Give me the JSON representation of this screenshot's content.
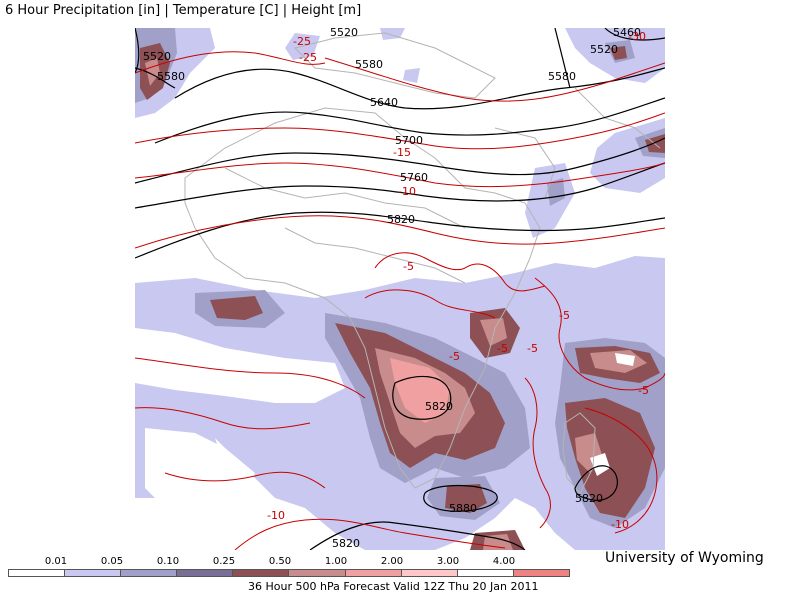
{
  "title": "6 Hour Precipitation [in] | Temperature [C] | Height [m]",
  "credit": "University of Wyoming",
  "footer": "36 Hour 500 hPa Forecast Valid 12Z Thu 20 Jan 2011",
  "colors": {
    "precip_levels": [
      "#ffffff",
      "#c8c8f0",
      "#a0a0c8",
      "#786e96",
      "#8c5055",
      "#c88c8c",
      "#f0a0a0",
      "#ffc8c8",
      "#ffffff",
      "#f08282"
    ],
    "height_contour": "#000000",
    "temperature_contour": "#c80000",
    "coastline": "#b4b4b4"
  },
  "legend": {
    "labels": [
      "0.01",
      "0.05",
      "0.10",
      "0.25",
      "0.50",
      "1.00",
      "2.00",
      "3.00",
      "4.00"
    ]
  },
  "height_labels": [
    "5520",
    "5580",
    "5520",
    "5460",
    "5520",
    "5580",
    "5580",
    "5640",
    "5700",
    "5760",
    "5820",
    "5820",
    "5880",
    "5820",
    "5820"
  ],
  "temperature_labels": [
    "-25",
    "-25",
    "-30",
    "-15",
    "-10",
    "-5",
    "-5",
    "-5",
    "-5",
    "-5",
    "-5",
    "-10",
    "-10"
  ]
}
